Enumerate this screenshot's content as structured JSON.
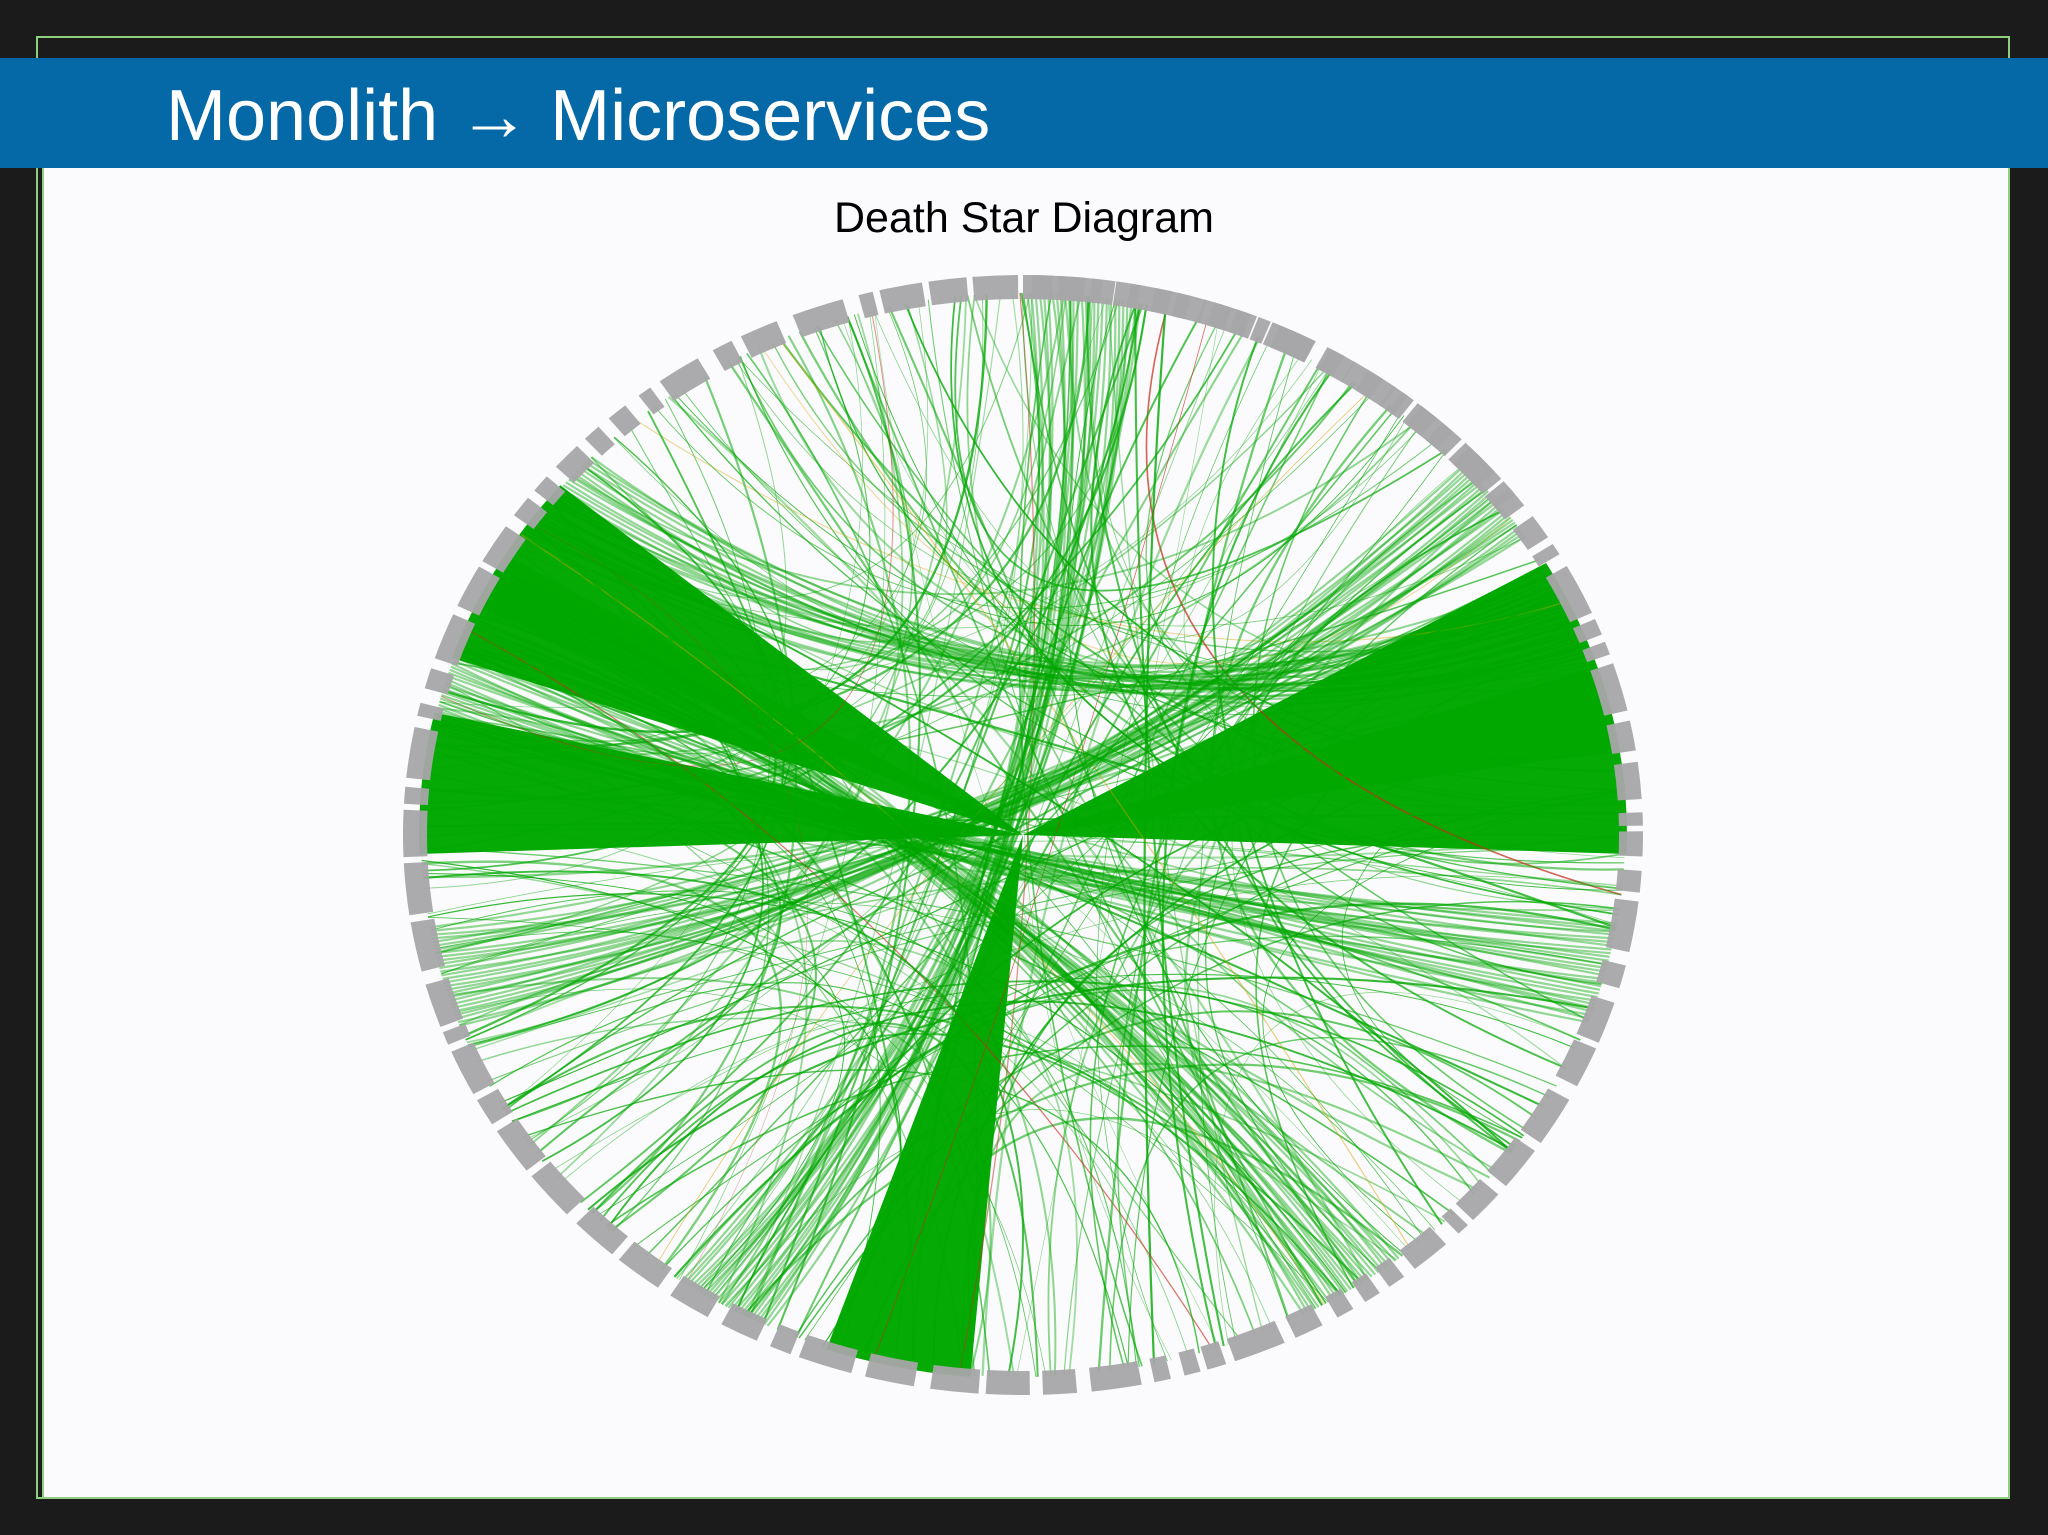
{
  "slide": {
    "title": "Monolith → Microservices",
    "diagram_title": "Death Star Diagram"
  },
  "colors": {
    "background": "#1b1b1b",
    "header": "#0569a7",
    "panel": "#fbfafd",
    "frame": "#8fd07f",
    "segment": "#a6a5a8",
    "chord_primary": "#00a800",
    "chord_secondary": "#c62d18",
    "chord_warning": "#d7a300"
  },
  "diagram": {
    "type": "chord",
    "style": "dense service dependency diagram",
    "segment_count": 96,
    "chord_count": 220,
    "major_bundles": 5
  }
}
